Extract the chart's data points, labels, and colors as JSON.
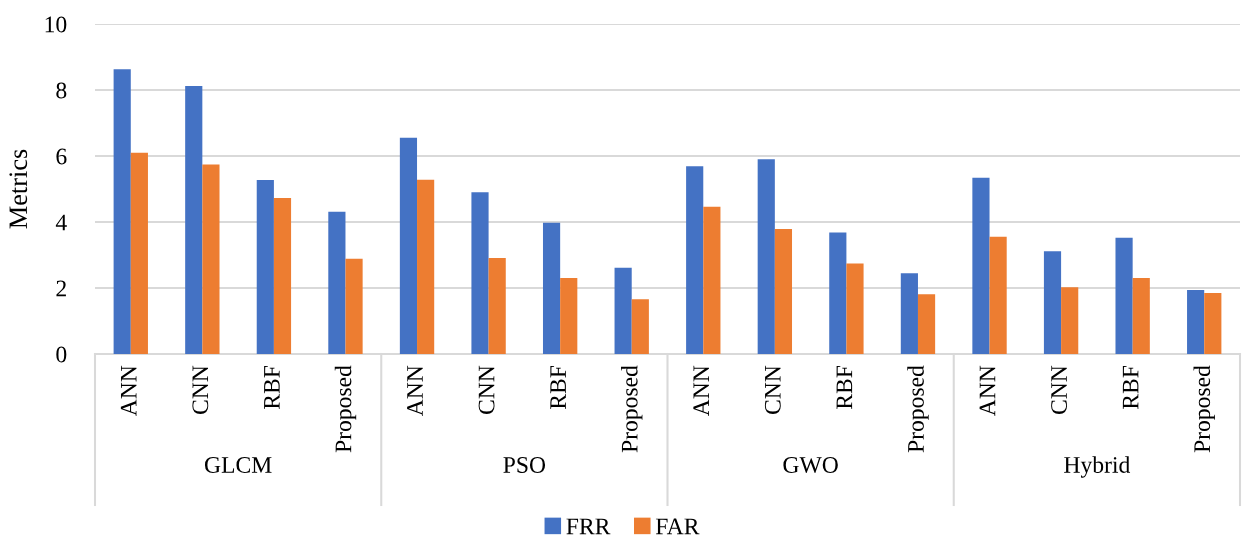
{
  "chart_data": {
    "type": "bar",
    "ylabel": "Metrics",
    "categories": [
      "ANN",
      "CNN",
      "RBF",
      "Proposed",
      "ANN",
      "CNN",
      "RBF",
      "Proposed",
      "ANN",
      "CNN",
      "RBF",
      "Proposed",
      "ANN",
      "CNN",
      "RBF",
      "Proposed"
    ],
    "annotations": [
      "GLCM",
      "PSO",
      "GWO",
      "Hybrid"
    ],
    "series": [
      {
        "name": "FRR",
        "color": "#4472c4",
        "values": [
          8.63,
          8.12,
          5.27,
          4.31,
          6.55,
          4.9,
          3.98,
          2.61,
          5.69,
          5.9,
          3.68,
          2.45,
          5.34,
          3.11,
          3.52,
          1.94
        ]
      },
      {
        "name": "FAR",
        "color": "#ed7d31",
        "values": [
          6.1,
          5.74,
          4.73,
          2.89,
          5.28,
          2.91,
          2.3,
          1.66,
          4.46,
          3.79,
          2.74,
          1.81,
          3.55,
          2.02,
          2.3,
          1.85
        ]
      }
    ],
    "ylim": [
      0,
      10
    ],
    "yticks": [
      0,
      2,
      4,
      6,
      8,
      10
    ],
    "grid": "y",
    "legend": "bottom"
  }
}
